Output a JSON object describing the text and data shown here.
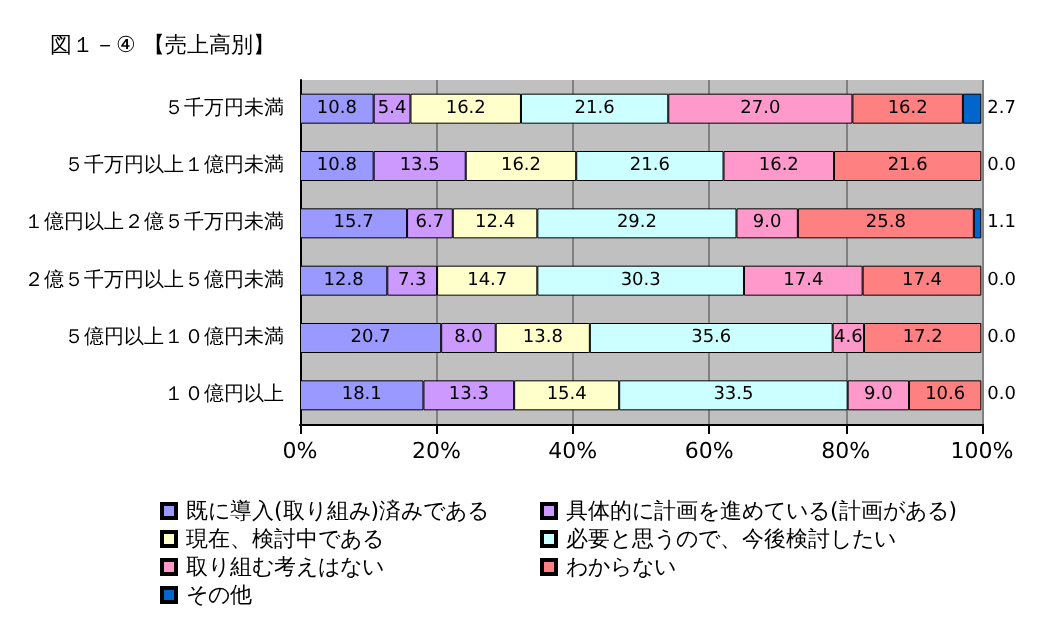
{
  "chart_data": {
    "type": "bar",
    "orientation": "horizontal",
    "stacked": true,
    "title": "図１－④ 【売上高別】",
    "categories": [
      "５千万円未満",
      "５千万円以上１億円未満",
      "１億円以上２億５千万円未満",
      "２億５千万円以上５億円未満",
      "５億円以上１０億円未満",
      "１０億円以上"
    ],
    "series": [
      {
        "name": "既に導入(取り組み)済みである",
        "color": "#9999ff",
        "values": [
          10.8,
          10.8,
          15.7,
          12.8,
          20.7,
          18.1
        ],
        "value_labels": [
          "10.8",
          "10.8",
          "15.7",
          "12.8",
          "20.7",
          "18.1"
        ]
      },
      {
        "name": "具体的に計画を進めている(計画がある)",
        "color": "#cc99ff",
        "values": [
          5.4,
          13.5,
          6.7,
          7.3,
          8.0,
          13.3
        ],
        "value_labels": [
          "5.4",
          "13.5",
          "6.7",
          "7.3",
          "8.0",
          "13.3"
        ]
      },
      {
        "name": "現在、検討中である",
        "color": "#ffffcc",
        "values": [
          16.2,
          16.2,
          12.4,
          14.7,
          13.8,
          15.4
        ],
        "value_labels": [
          "16.2",
          "16.2",
          "12.4",
          "14.7",
          "13.8",
          "15.4"
        ]
      },
      {
        "name": "必要と思うので、今後検討したい",
        "color": "#ccffff",
        "values": [
          21.6,
          21.6,
          29.2,
          30.3,
          35.6,
          33.5
        ],
        "value_labels": [
          "21.6",
          "21.6",
          "29.2",
          "30.3",
          "35.6",
          "33.5"
        ]
      },
      {
        "name": "取り組む考えはない",
        "color": "#ff99cc",
        "values": [
          27.0,
          16.2,
          9.0,
          17.4,
          4.6,
          9.0
        ],
        "value_labels": [
          "27.0",
          "16.2",
          "9.0",
          "17.4",
          "4.6",
          "9.0"
        ]
      },
      {
        "name": "わからない",
        "color": "#ff8080",
        "values": [
          16.2,
          21.6,
          25.8,
          17.4,
          17.2,
          10.6
        ],
        "value_labels": [
          "16.2",
          "21.6",
          "25.8",
          "17.4",
          "17.2",
          "10.6"
        ]
      },
      {
        "name": "その他",
        "color": "#0066cc",
        "values": [
          2.7,
          0.0,
          1.1,
          0.0,
          0.0,
          0.0
        ],
        "value_labels": [
          "2.7",
          "0.0",
          "1.1",
          "0.0",
          "0.0",
          "0.0"
        ]
      }
    ],
    "xlim": [
      0,
      100
    ],
    "xticks": [
      {
        "value": 0,
        "label": "0%"
      },
      {
        "value": 20,
        "label": "20%"
      },
      {
        "value": 40,
        "label": "40%"
      },
      {
        "value": 60,
        "label": "60%"
      },
      {
        "value": 80,
        "label": "80%"
      },
      {
        "value": 100,
        "label": "100%"
      }
    ],
    "grid": "x",
    "legend": "bottom"
  }
}
